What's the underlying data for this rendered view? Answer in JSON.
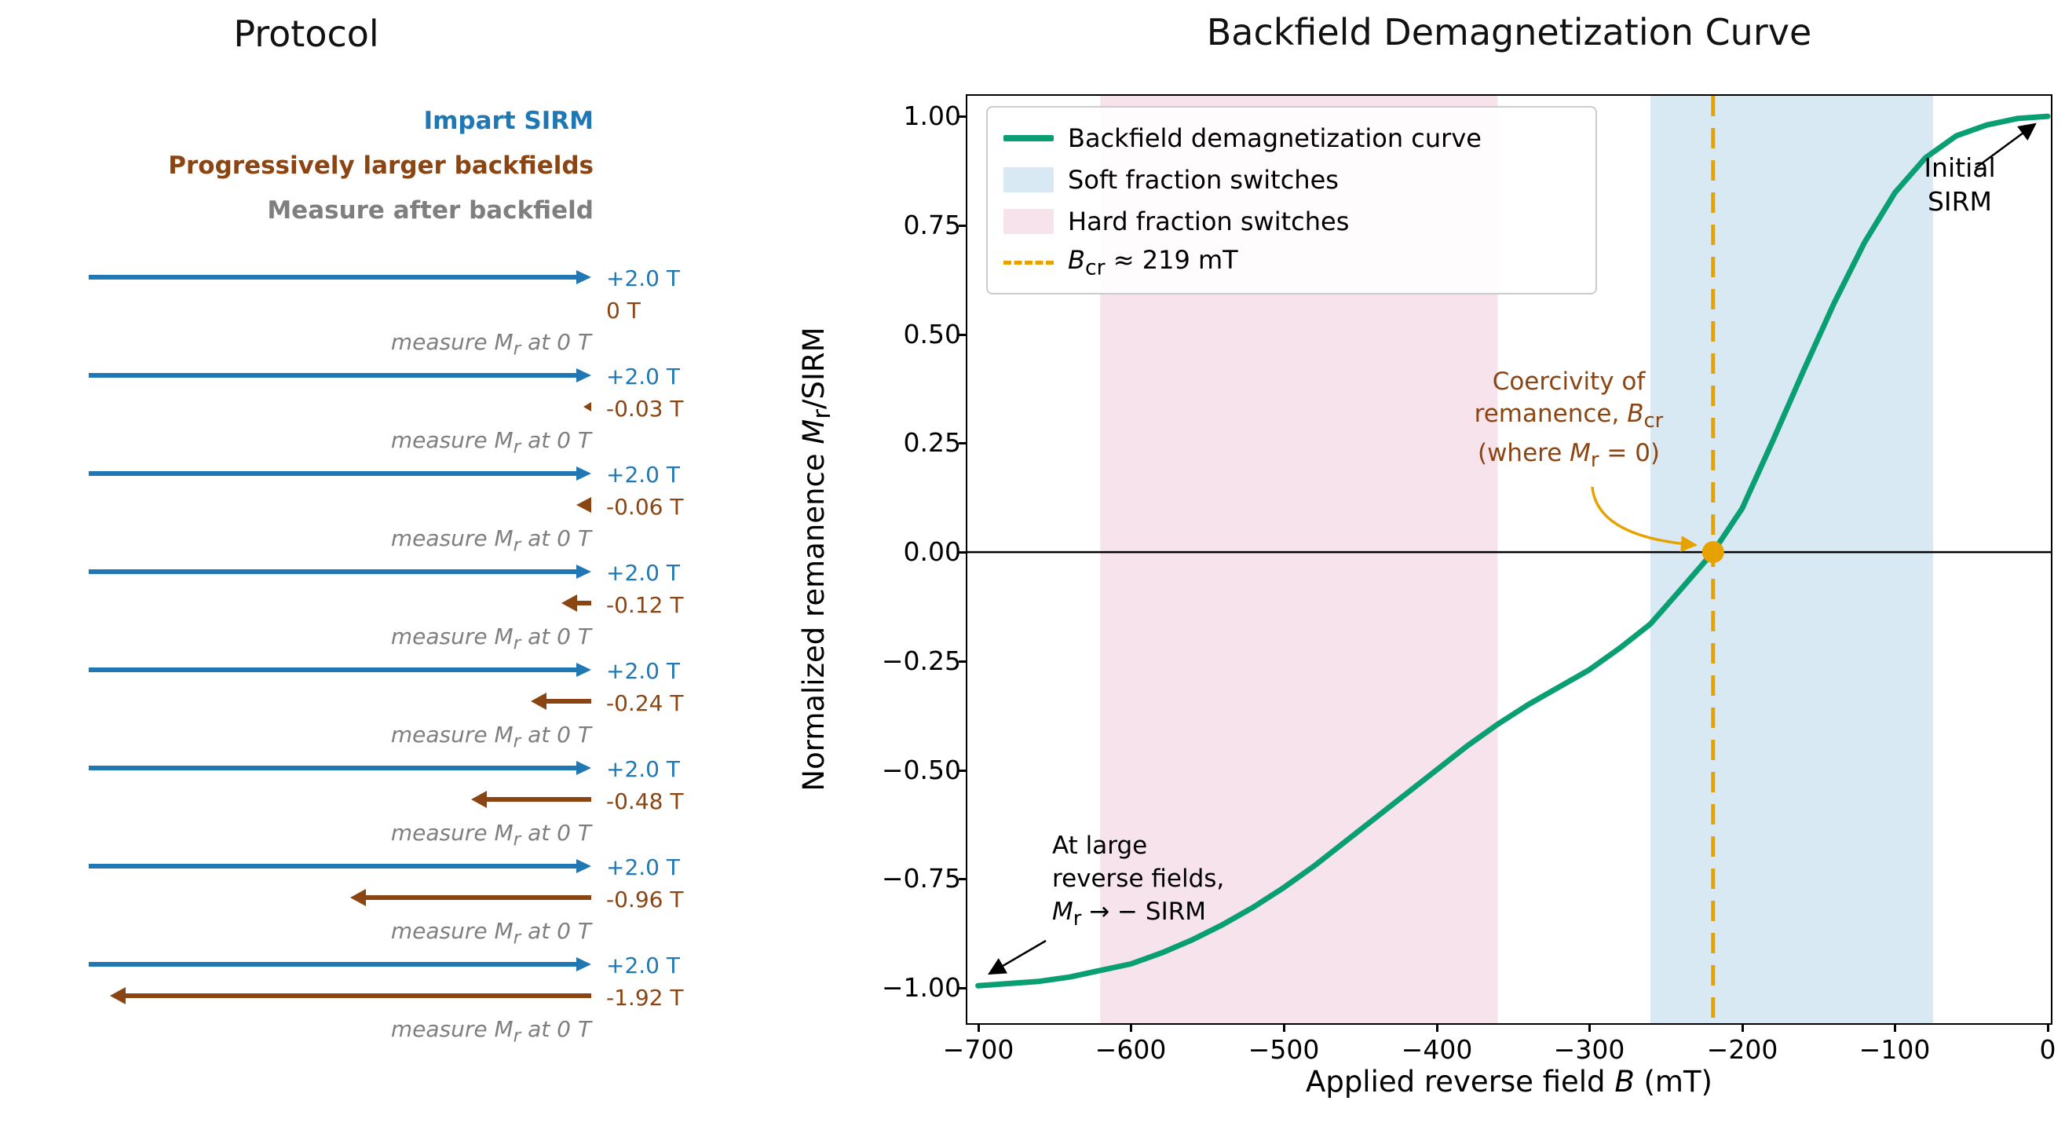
{
  "protocol": {
    "title": "Protocol",
    "legend": [
      {
        "label": "Impart SIRM",
        "color": "#1f77b4"
      },
      {
        "label": "Progressively larger backfields",
        "color": "#8B4513"
      },
      {
        "label": "Measure after backfield",
        "color": "#7f7f7f"
      }
    ],
    "sirm_label": "+2.0 T",
    "measure_label": "measure M_r at 0 T",
    "steps": [
      {
        "backfield_label": "0 T",
        "backfield_T": 0
      },
      {
        "backfield_label": "-0.03 T",
        "backfield_T": 0.03
      },
      {
        "backfield_label": "-0.06 T",
        "backfield_T": 0.06
      },
      {
        "backfield_label": "-0.12 T",
        "backfield_T": 0.12
      },
      {
        "backfield_label": "-0.24 T",
        "backfield_T": 0.24
      },
      {
        "backfield_label": "-0.48 T",
        "backfield_T": 0.48
      },
      {
        "backfield_label": "-0.96 T",
        "backfield_T": 0.96
      },
      {
        "backfield_label": "-1.92 T",
        "backfield_T": 1.92
      }
    ],
    "colors": {
      "sirm": "#1f77b4",
      "backfield": "#8B4513",
      "measure": "#7f7f7f"
    }
  },
  "chart_data": {
    "type": "line",
    "title": "Backfield Demagnetization Curve",
    "xlabel": "Applied reverse field B (mT)",
    "ylabel": "Normalized remanence M_r/SIRM",
    "xlim": [
      -707,
      2
    ],
    "ylim": [
      -1.081,
      1.047
    ],
    "x_ticks": [
      -700,
      -600,
      -500,
      -400,
      -300,
      -200,
      -100,
      0
    ],
    "x_tick_labels": [
      "−700",
      "−600",
      "−500",
      "−400",
      "−300",
      "−200",
      "−100",
      "0"
    ],
    "y_ticks": [
      -1.0,
      -0.75,
      -0.5,
      -0.25,
      0,
      0.25,
      0.5,
      0.75,
      1.0
    ],
    "y_tick_labels": [
      "−1.00",
      "−0.75",
      "−0.50",
      "−0.25",
      "0.00",
      "0.25",
      "0.50",
      "0.75",
      "1.00"
    ],
    "grid": false,
    "zero_line_y": 0,
    "series": [
      {
        "name": "Backfield demagnetization curve",
        "color": "#0a9e73",
        "x": [
          -700,
          -680,
          -660,
          -640,
          -620,
          -600,
          -580,
          -560,
          -540,
          -520,
          -500,
          -480,
          -460,
          -440,
          -420,
          -400,
          -380,
          -360,
          -340,
          -320,
          -300,
          -280,
          -260,
          -240,
          -219,
          -200,
          -180,
          -160,
          -140,
          -120,
          -100,
          -80,
          -60,
          -40,
          -20,
          0
        ],
        "y": [
          -0.995,
          -0.99,
          -0.985,
          -0.975,
          -0.96,
          -0.945,
          -0.92,
          -0.89,
          -0.855,
          -0.815,
          -0.77,
          -0.72,
          -0.665,
          -0.61,
          -0.555,
          -0.5,
          -0.445,
          -0.395,
          -0.35,
          -0.31,
          -0.27,
          -0.22,
          -0.165,
          -0.085,
          0.0,
          0.1,
          0.255,
          0.415,
          0.57,
          0.71,
          0.825,
          0.905,
          0.955,
          0.98,
          0.995,
          1.0
        ]
      }
    ],
    "regions": [
      {
        "name": "Soft fraction switches",
        "x0": -260,
        "x1": -75,
        "color": "#d8e9f4"
      },
      {
        "name": "Hard fraction switches",
        "x0": -620,
        "x1": -360,
        "color": "#f6e3eb"
      }
    ],
    "bcr": {
      "value_mT": -219,
      "marker_y": 0,
      "color": "#E8A200"
    },
    "legend": [
      {
        "type": "line",
        "label": "Backfield demagnetization curve",
        "color": "#0a9e73"
      },
      {
        "type": "patch",
        "label": "Soft fraction switches",
        "color": "#d8e9f4"
      },
      {
        "type": "patch",
        "label": "Hard fraction switches",
        "color": "#f6e3eb"
      },
      {
        "type": "dash",
        "label": "B_cr ≈ 219 mT",
        "color": "#E8A200"
      }
    ],
    "legend_position": "upper left",
    "annotations": [
      {
        "id": "coercivity",
        "text": "Coercivity of\nremanence, B_cr\n(where M_r = 0)",
        "color": "#8B4513"
      },
      {
        "id": "initial-sirm",
        "text": "Initial\nSIRM",
        "color": "#000000"
      },
      {
        "id": "large-reverse",
        "text": "At large\nreverse fields,\nM_r → − SIRM",
        "color": "#000000"
      }
    ]
  }
}
